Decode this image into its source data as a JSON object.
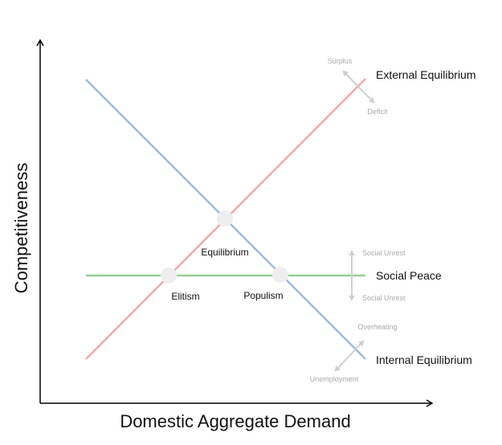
{
  "axes": {
    "x_label": "Domestic Aggregate Demand",
    "y_label": "Competitiveness"
  },
  "lines": {
    "external": {
      "label": "External Equilibrium",
      "color": "#f4a9a8"
    },
    "internal": {
      "label": "Internal Equilibrium",
      "color": "#9bbbe0"
    },
    "social": {
      "label": "Social Peace",
      "color": "#94cf94"
    }
  },
  "points": {
    "equilibrium": "Equilibrium",
    "elitism": "Elitism",
    "populism": "Populism"
  },
  "hints": {
    "surplus": "Surplus",
    "deficit": "Deficit",
    "unrest_top": "Social Unrest",
    "unrest_bottom": "Social Unrest",
    "overheating": "Overheating",
    "unemployment": "Unemployment"
  },
  "colors": {
    "axis": "#000000",
    "point": "#eeeeee",
    "hint_arrow": "#d0d0d0"
  }
}
